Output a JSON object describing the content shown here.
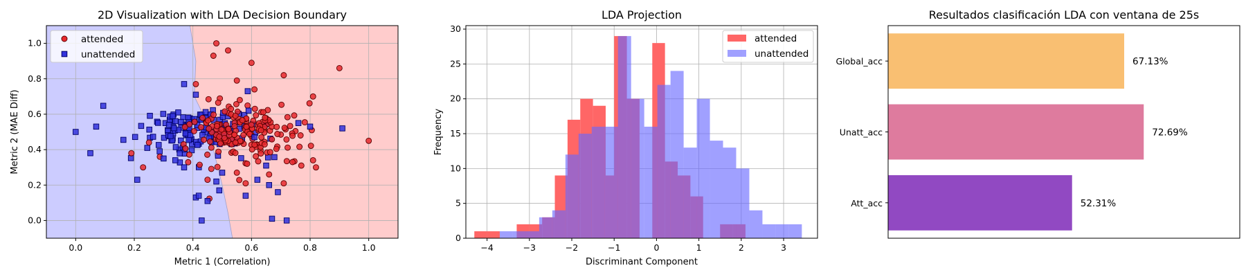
{
  "chart_data": [
    {
      "type": "scatter",
      "title": "2D Visualization with LDA Decision Boundary",
      "xlabel": "Metric 1 (Correlation)",
      "ylabel": "Metric 2 (MAE Diff)",
      "xlim": [
        -0.1,
        1.1
      ],
      "ylim": [
        -0.1,
        1.1
      ],
      "xticks": [
        "0.0",
        "0.2",
        "0.4",
        "0.6",
        "0.8",
        "1.0"
      ],
      "yticks": [
        "0.0",
        "0.2",
        "0.4",
        "0.6",
        "0.8",
        "1.0"
      ],
      "grid": true,
      "legend_position": "top-left",
      "region_colors": {
        "unattended": "#ccccff",
        "attended": "#ffcccc"
      },
      "boundary_points": [
        [
          0.39,
          1.1
        ],
        [
          0.41,
          0.9
        ],
        [
          0.405,
          0.7
        ],
        [
          0.44,
          0.58
        ],
        [
          0.47,
          0.4
        ],
        [
          0.5,
          0.2
        ],
        [
          0.52,
          0.04
        ],
        [
          0.535,
          -0.1
        ]
      ],
      "series": [
        {
          "name": "attended",
          "marker": "circle",
          "color": "#e8292e",
          "edge": "#5a0000",
          "outliers": [
            [
              1.0,
              0.45
            ],
            [
              0.9,
              0.86
            ],
            [
              0.81,
              0.7
            ],
            [
              0.71,
              0.82
            ],
            [
              0.6,
              0.89
            ],
            [
              0.55,
              0.79
            ],
            [
              0.47,
              0.93
            ],
            [
              0.41,
              0.77
            ],
            [
              0.52,
              0.96
            ],
            [
              0.48,
              1.0
            ],
            [
              0.61,
              0.74
            ],
            [
              0.71,
              0.21
            ],
            [
              0.58,
              0.21
            ],
            [
              0.23,
              0.3
            ],
            [
              0.19,
              0.38
            ],
            [
              0.25,
              0.44
            ],
            [
              0.82,
              0.3
            ],
            [
              0.81,
              0.34
            ],
            [
              0.77,
              0.31
            ],
            [
              0.74,
              0.33
            ],
            [
              0.66,
              0.26
            ],
            [
              0.55,
              0.27
            ],
            [
              0.45,
              0.23
            ],
            [
              0.53,
              0.63
            ],
            [
              0.56,
              0.68
            ]
          ],
          "cluster": {
            "center": [
              0.58,
              0.5
            ],
            "spread": [
              0.1,
              0.08
            ],
            "count": 175
          }
        },
        {
          "name": "unattended",
          "marker": "square",
          "color": "#3333dd",
          "edge": "#000066",
          "outliers": [
            [
              0.0,
              0.5
            ],
            [
              0.05,
              0.38
            ],
            [
              0.07,
              0.53
            ],
            [
              0.21,
              0.23
            ],
            [
              0.37,
              0.77
            ],
            [
              0.35,
              0.61
            ],
            [
              0.41,
              0.71
            ],
            [
              0.41,
              0.13
            ],
            [
              0.42,
              0.14
            ],
            [
              0.45,
              0.11
            ],
            [
              0.49,
              0.17
            ],
            [
              0.48,
              0.22
            ],
            [
              0.5,
              0.27
            ],
            [
              0.37,
              0.3
            ],
            [
              0.34,
              0.34
            ],
            [
              0.3,
              0.35
            ],
            [
              0.62,
              0.23
            ],
            [
              0.67,
              0.01
            ],
            [
              0.72,
              0.0
            ],
            [
              0.58,
              0.14
            ],
            [
              0.69,
              0.16
            ],
            [
              0.65,
              0.31
            ],
            [
              0.66,
              0.2
            ],
            [
              0.8,
              0.53
            ],
            [
              0.76,
              0.55
            ],
            [
              0.91,
              0.52
            ],
            [
              0.43,
              0.0
            ],
            [
              0.59,
              0.62
            ],
            [
              0.61,
              0.47
            ]
          ],
          "cluster": {
            "center": [
              0.42,
              0.5
            ],
            "spread": [
              0.1,
              0.07
            ],
            "count": 150
          }
        }
      ]
    },
    {
      "type": "bar",
      "subtype": "histogram",
      "title": "LDA Projection",
      "xlabel": "Discriminant Component",
      "ylabel": "Frequency",
      "xlim": [
        -4.5,
        3.8
      ],
      "ylim": [
        0,
        30.5
      ],
      "xticks": [
        "−4",
        "−3",
        "−2",
        "−1",
        "0",
        "1",
        "2",
        "3"
      ],
      "yticks": [
        "0",
        "5",
        "10",
        "15",
        "20",
        "25",
        "30"
      ],
      "grid": true,
      "legend_position": "top-right",
      "series": [
        {
          "name": "attended",
          "color": "#ff6666",
          "bin_width": 0.3,
          "bins": [
            [
              -4.3,
              1
            ],
            [
              -4.0,
              1
            ],
            [
              -3.3,
              2
            ],
            [
              -3.0,
              2
            ],
            [
              -2.7,
              3
            ],
            [
              -2.4,
              9
            ],
            [
              -2.1,
              17
            ],
            [
              -1.8,
              20
            ],
            [
              -1.5,
              19
            ],
            [
              -1.2,
              9
            ],
            [
              -1.0,
              29
            ],
            [
              -0.7,
              20
            ],
            [
              -0.1,
              28
            ],
            [
              0.2,
              11
            ],
            [
              0.5,
              9
            ],
            [
              0.8,
              6
            ],
            [
              1.5,
              2
            ],
            [
              1.8,
              2
            ]
          ]
        },
        {
          "name": "unattended",
          "color": "#6666ff",
          "bin_width": 0.31,
          "bins": [
            [
              -3.7,
              1
            ],
            [
              -3.39,
              1
            ],
            [
              -3.08,
              1
            ],
            [
              -2.77,
              3
            ],
            [
              -2.46,
              4
            ],
            [
              -2.15,
              12
            ],
            [
              -1.84,
              15
            ],
            [
              -1.53,
              16
            ],
            [
              -1.22,
              16
            ],
            [
              -0.91,
              29
            ],
            [
              -0.6,
              20
            ],
            [
              -0.29,
              16
            ],
            [
              0.02,
              22
            ],
            [
              0.33,
              24
            ],
            [
              0.64,
              13
            ],
            [
              0.95,
              20
            ],
            [
              1.26,
              14
            ],
            [
              1.57,
              13
            ],
            [
              1.88,
              10
            ],
            [
              2.19,
              4
            ],
            [
              2.5,
              2
            ],
            [
              2.81,
              2
            ],
            [
              3.12,
              2
            ]
          ]
        }
      ],
      "overlap_color": "#6a23c4"
    },
    {
      "type": "bar",
      "orientation": "horizontal",
      "title": "Resultados clasificación LDA con ventana de 25s",
      "xlim": [
        0,
        100
      ],
      "categories": [
        "Global_acc",
        "Unatt_acc",
        "Att_acc"
      ],
      "values": [
        67.13,
        72.69,
        52.31
      ],
      "labels": [
        "67.13%",
        "72.69%",
        "52.31%"
      ],
      "colors": [
        "#f9bf72",
        "#de7b9e",
        "#9149c2"
      ],
      "grid": false
    }
  ]
}
